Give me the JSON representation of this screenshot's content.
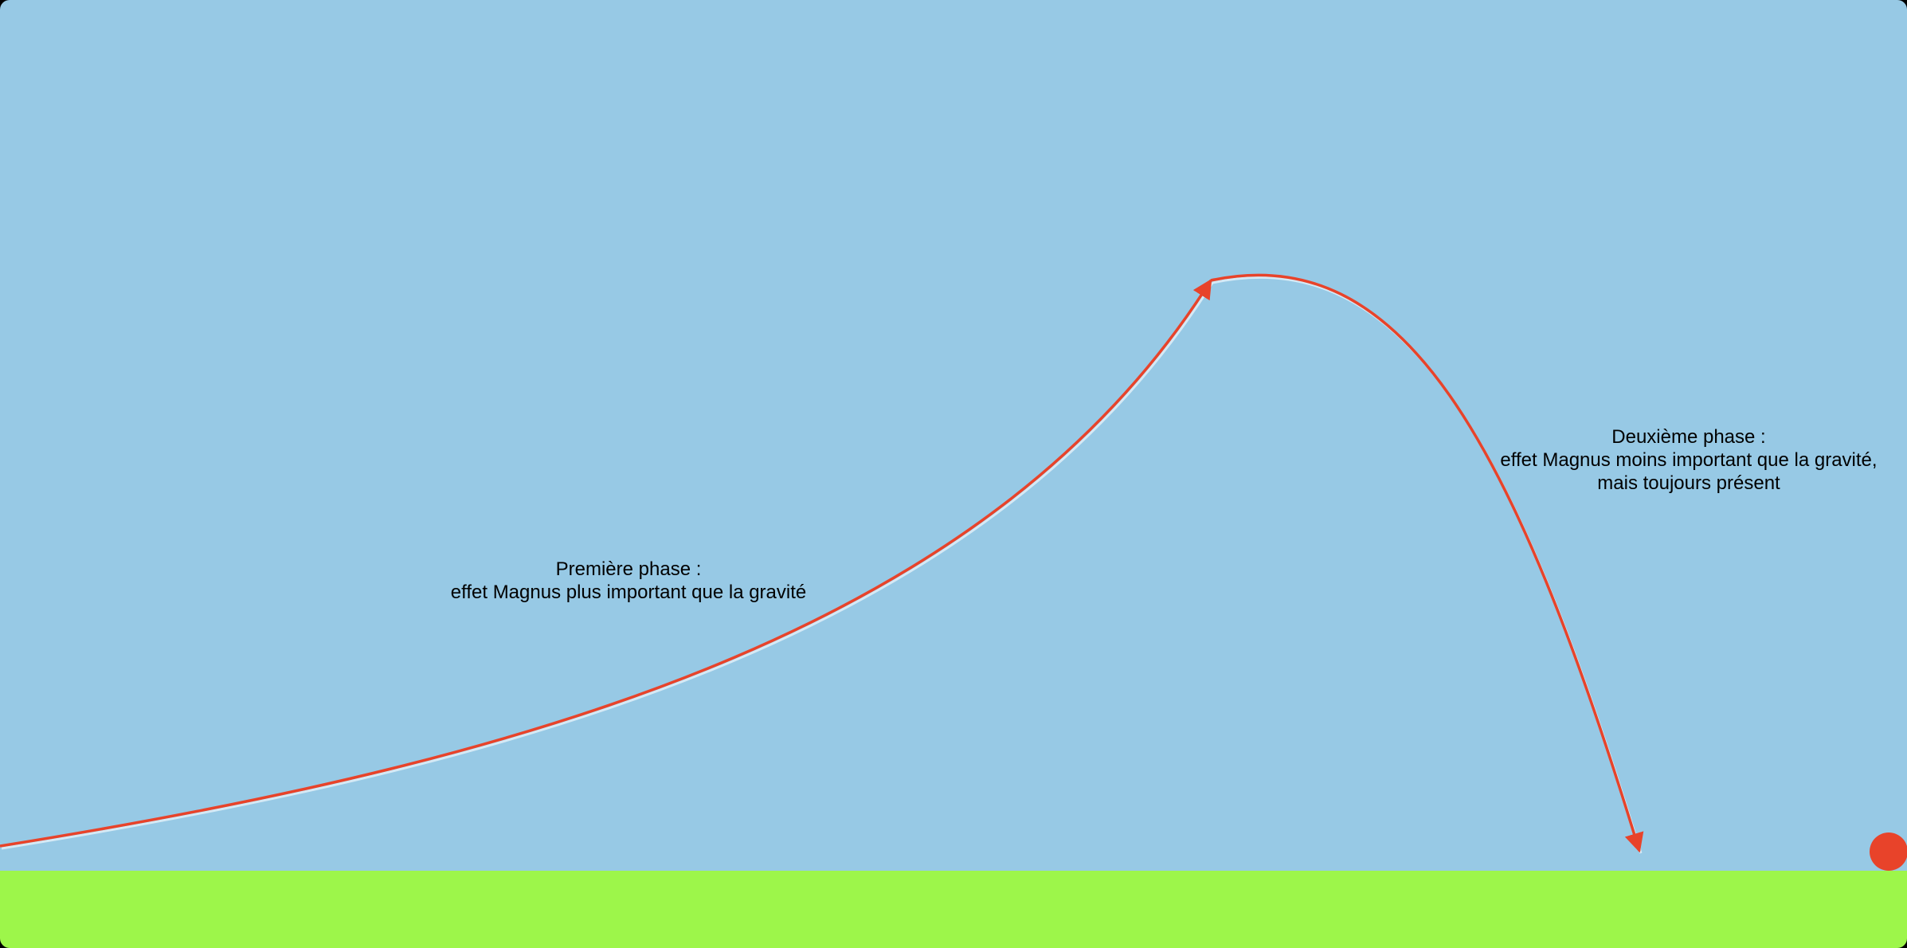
{
  "colors": {
    "sky": "#97c9e5",
    "ground": "#9df64a",
    "trajectory": "#e8432a",
    "ball": "#e8432a",
    "trajectory_highlight": "#ffffff"
  },
  "annotations": {
    "phase_one": {
      "title": "Première phase :",
      "description": "effet Magnus plus important que la gravité"
    },
    "phase_two": {
      "title": "Deuxième phase :",
      "line_1": "effet Magnus moins important que la gravité,",
      "line_2": "mais toujours présent"
    }
  }
}
